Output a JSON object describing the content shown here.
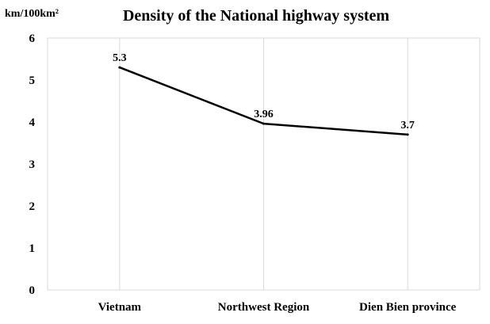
{
  "chart_data": {
    "type": "line",
    "title": "Density of the National highway system",
    "ylabel": "km/100km²",
    "xlabel": "",
    "categories": [
      "Vietnam",
      "Northwest Region",
      "Dien Bien province"
    ],
    "values": [
      5.3,
      3.96,
      3.7
    ],
    "data_labels": [
      "5.3",
      "3.96",
      "3.7"
    ],
    "ylim": [
      0,
      6
    ],
    "yticks": [
      "0",
      "1",
      "2",
      "3",
      "4",
      "5",
      "6"
    ],
    "grid": "vertical lines at categories",
    "legend": "none",
    "line_color": "#000000",
    "grid_color": "#d9d9d9"
  }
}
